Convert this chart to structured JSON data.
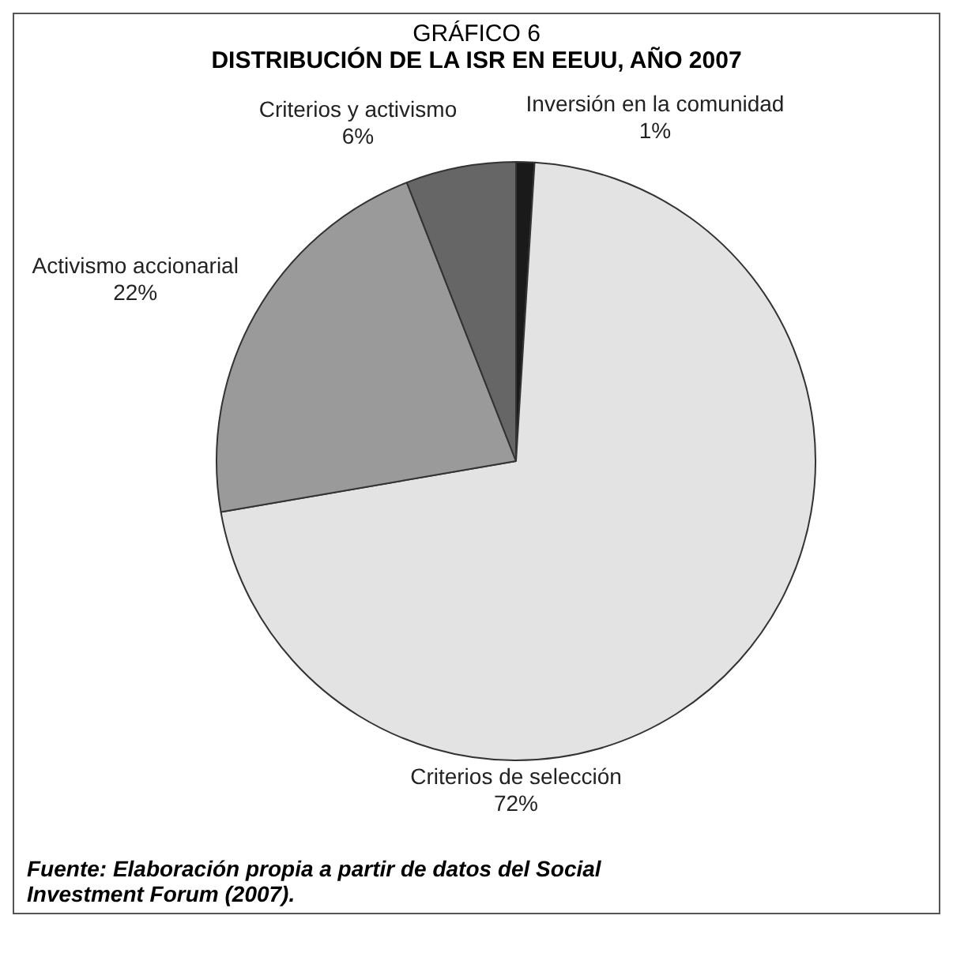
{
  "chart_data": {
    "type": "pie",
    "subtitle": "GRÁFICO 6",
    "title": "DISTRIBUCIÓN DE LA ISR EN EEUU, AÑO 2007",
    "categories": [
      "Inversión en la comunidad",
      "Criterios de selección",
      "Activismo accionarial",
      "Criterios y activismo"
    ],
    "values": [
      1,
      72,
      22,
      6
    ],
    "colors": [
      "#1a1a1a",
      "#e3e3e3",
      "#9a9a9a",
      "#666666"
    ],
    "value_labels": [
      "1%",
      "72%",
      "22%",
      "6%"
    ],
    "legend": false,
    "annotations": [
      "Fuente: Elaboración propia a partir de datos del Social Investment Forum (2007)."
    ]
  }
}
